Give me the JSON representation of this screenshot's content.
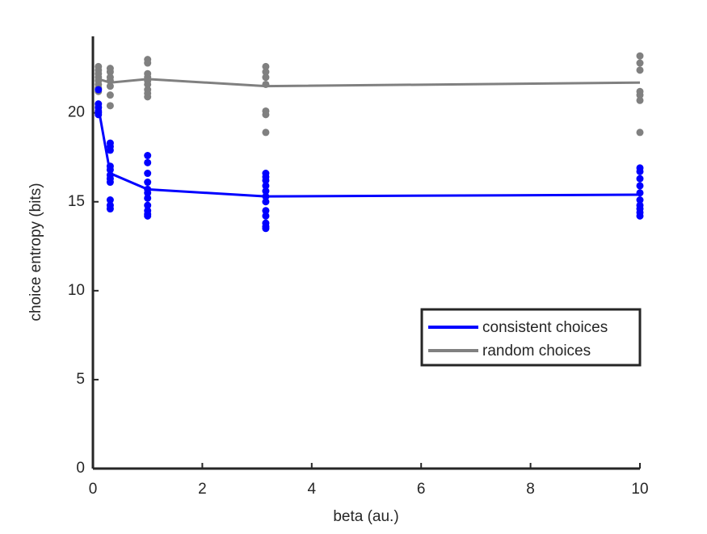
{
  "chart_data": {
    "type": "line",
    "xlabel": "beta (au.)",
    "ylabel": "choice entropy (bits)",
    "xlim": [
      0,
      10
    ],
    "ylim": [
      0,
      24.3
    ],
    "xticks": [
      0,
      2,
      4,
      6,
      8,
      10
    ],
    "yticks": [
      0,
      5,
      10,
      15,
      20
    ],
    "legend": "right",
    "series": [
      {
        "name": "consistent choices",
        "color": "#0000ff",
        "x": [
          0.1,
          0.316,
          1,
          3.16,
          10
        ],
        "values": [
          20.3,
          16.6,
          15.7,
          15.3,
          15.4
        ],
        "points_x": [
          0.1,
          0.1,
          0.1,
          0.1,
          0.1,
          0.1,
          0.316,
          0.316,
          0.316,
          0.316,
          0.316,
          0.316,
          0.316,
          0.316,
          0.316,
          0.316,
          0.316,
          1,
          1,
          1,
          1,
          1,
          1,
          1,
          1,
          1,
          1,
          1,
          3.16,
          3.16,
          3.16,
          3.16,
          3.16,
          3.16,
          3.16,
          3.16,
          3.16,
          3.16,
          3.16,
          3.16,
          10,
          10,
          10,
          10,
          10,
          10,
          10,
          10,
          10,
          10
        ],
        "points_y": [
          21.3,
          20.5,
          20.3,
          20.1,
          20.0,
          19.9,
          18.3,
          18.1,
          17.9,
          17.0,
          16.8,
          16.5,
          16.3,
          16.1,
          15.1,
          14.8,
          14.6,
          17.6,
          17.2,
          16.6,
          16.1,
          15.7,
          15.5,
          15.2,
          14.8,
          14.5,
          14.3,
          14.2,
          16.6,
          16.4,
          16.2,
          15.9,
          15.6,
          15.3,
          15.0,
          14.5,
          14.2,
          13.8,
          13.6,
          13.5,
          16.9,
          16.7,
          16.3,
          15.9,
          15.5,
          15.1,
          14.8,
          14.6,
          14.4,
          14.2
        ]
      },
      {
        "name": "random choices",
        "color": "#808080",
        "x": [
          0.1,
          0.316,
          1,
          3.16,
          10
        ],
        "values": [
          21.9,
          21.7,
          21.9,
          21.5,
          21.7
        ],
        "points_x": [
          0.1,
          0.1,
          0.1,
          0.1,
          0.1,
          0.1,
          0.1,
          0.1,
          0.316,
          0.316,
          0.316,
          0.316,
          0.316,
          0.316,
          0.316,
          1,
          1,
          1,
          1,
          1,
          1,
          1,
          1,
          1,
          3.16,
          3.16,
          3.16,
          3.16,
          3.16,
          3.16,
          3.16,
          10,
          10,
          10,
          10,
          10,
          10,
          10
        ],
        "points_y": [
          22.6,
          22.4,
          22.2,
          22.0,
          21.8,
          21.6,
          21.4,
          21.2,
          22.5,
          22.3,
          22.0,
          21.8,
          21.5,
          21.0,
          20.4,
          23.0,
          22.8,
          22.2,
          22.0,
          21.8,
          21.6,
          21.3,
          21.1,
          20.9,
          22.6,
          22.3,
          22.0,
          21.6,
          20.1,
          19.9,
          18.9,
          23.2,
          22.8,
          22.4,
          21.2,
          21.0,
          20.7,
          18.9
        ]
      }
    ]
  }
}
